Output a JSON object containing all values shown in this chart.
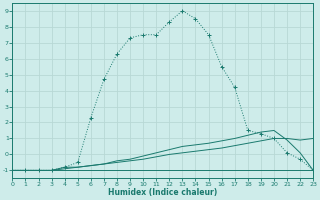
{
  "xlabel": "Humidex (Indice chaleur)",
  "background_color": "#ceecea",
  "grid_color": "#b8d8d5",
  "line_color": "#1a7a6e",
  "xlim": [
    0,
    23
  ],
  "ylim": [
    -1.5,
    9.5
  ],
  "xticks": [
    0,
    1,
    2,
    3,
    4,
    5,
    6,
    7,
    8,
    9,
    10,
    11,
    12,
    13,
    14,
    15,
    16,
    17,
    18,
    19,
    20,
    21,
    22,
    23
  ],
  "yticks": [
    -1,
    0,
    1,
    2,
    3,
    4,
    5,
    6,
    7,
    8,
    9
  ],
  "line1_x": [
    0,
    1,
    2,
    3,
    4,
    5,
    6,
    7,
    8,
    9,
    10,
    11,
    12,
    13,
    14,
    15,
    16,
    17,
    18,
    19,
    20,
    21,
    22,
    23
  ],
  "line1_y": [
    -1,
    -1,
    -1,
    -1,
    -0.8,
    -0.5,
    2.3,
    4.7,
    6.3,
    7.3,
    7.5,
    7.5,
    8.3,
    9.0,
    8.5,
    7.5,
    5.5,
    4.2,
    1.5,
    1.3,
    1.0,
    0.1,
    -0.3,
    -1.0
  ],
  "line2_x": [
    0,
    1,
    2,
    3,
    4,
    5,
    6,
    7,
    8,
    9,
    10,
    11,
    12,
    13,
    14,
    15,
    16,
    17,
    18,
    19,
    20,
    21,
    22,
    23
  ],
  "line2_y": [
    -1,
    -1,
    -1,
    -1,
    -1,
    -1,
    -1,
    -1,
    -1,
    -1,
    -1,
    -1,
    -1,
    -1,
    -1,
    -1,
    -1,
    -1,
    -1,
    -1,
    -1,
    -1,
    -1,
    -1
  ],
  "line3_x": [
    0,
    2,
    3,
    4,
    5,
    6,
    7,
    8,
    9,
    10,
    11,
    12,
    13,
    14,
    15,
    16,
    17,
    18,
    19,
    20,
    21,
    22,
    23
  ],
  "line3_y": [
    -1,
    -1,
    -1,
    -0.8,
    -0.8,
    -0.7,
    -0.6,
    -0.5,
    -0.4,
    -0.3,
    -0.15,
    0.0,
    0.1,
    0.2,
    0.3,
    0.4,
    0.55,
    0.7,
    0.85,
    1.0,
    1.0,
    0.9,
    1.0
  ],
  "line4_x": [
    0,
    2,
    3,
    4,
    5,
    6,
    7,
    8,
    9,
    10,
    11,
    12,
    13,
    14,
    15,
    16,
    17,
    18,
    19,
    20,
    21,
    22,
    23
  ],
  "line4_y": [
    -1,
    -1,
    -1,
    -0.9,
    -0.8,
    -0.7,
    -0.6,
    -0.4,
    -0.3,
    -0.1,
    0.1,
    0.3,
    0.5,
    0.6,
    0.7,
    0.85,
    1.0,
    1.2,
    1.4,
    1.5,
    0.9,
    0.1,
    -1.0
  ]
}
